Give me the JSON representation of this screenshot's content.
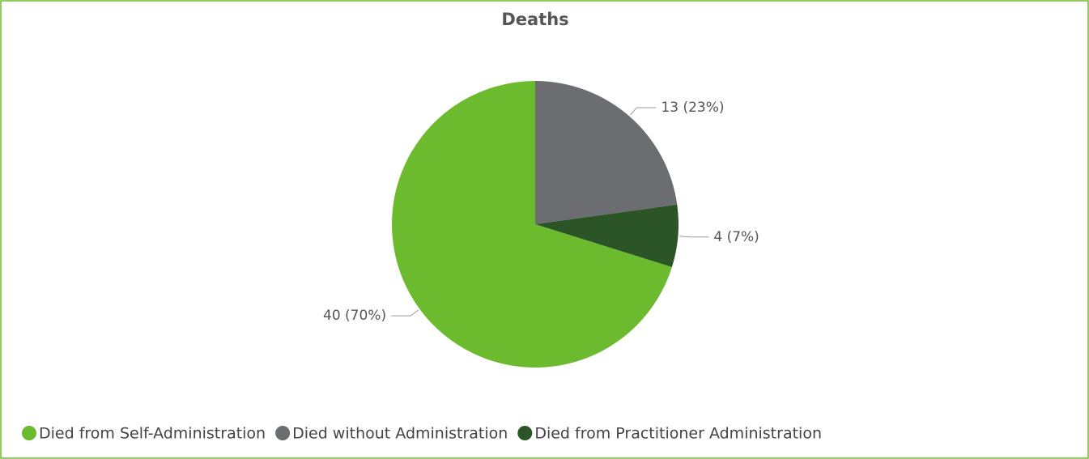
{
  "chart_data": {
    "type": "pie",
    "title": "Deaths",
    "categories": [
      "Died from Self-Administration",
      "Died without Administration",
      "Died from Practitioner Administration"
    ],
    "values": [
      40,
      13,
      4
    ],
    "value_labels": [
      "40 (70%)",
      "13 (23%)",
      "4 (7%)"
    ],
    "colors": [
      "#6cbb2f",
      "#6b6d70",
      "#2b5427"
    ],
    "legend": "bottom"
  }
}
